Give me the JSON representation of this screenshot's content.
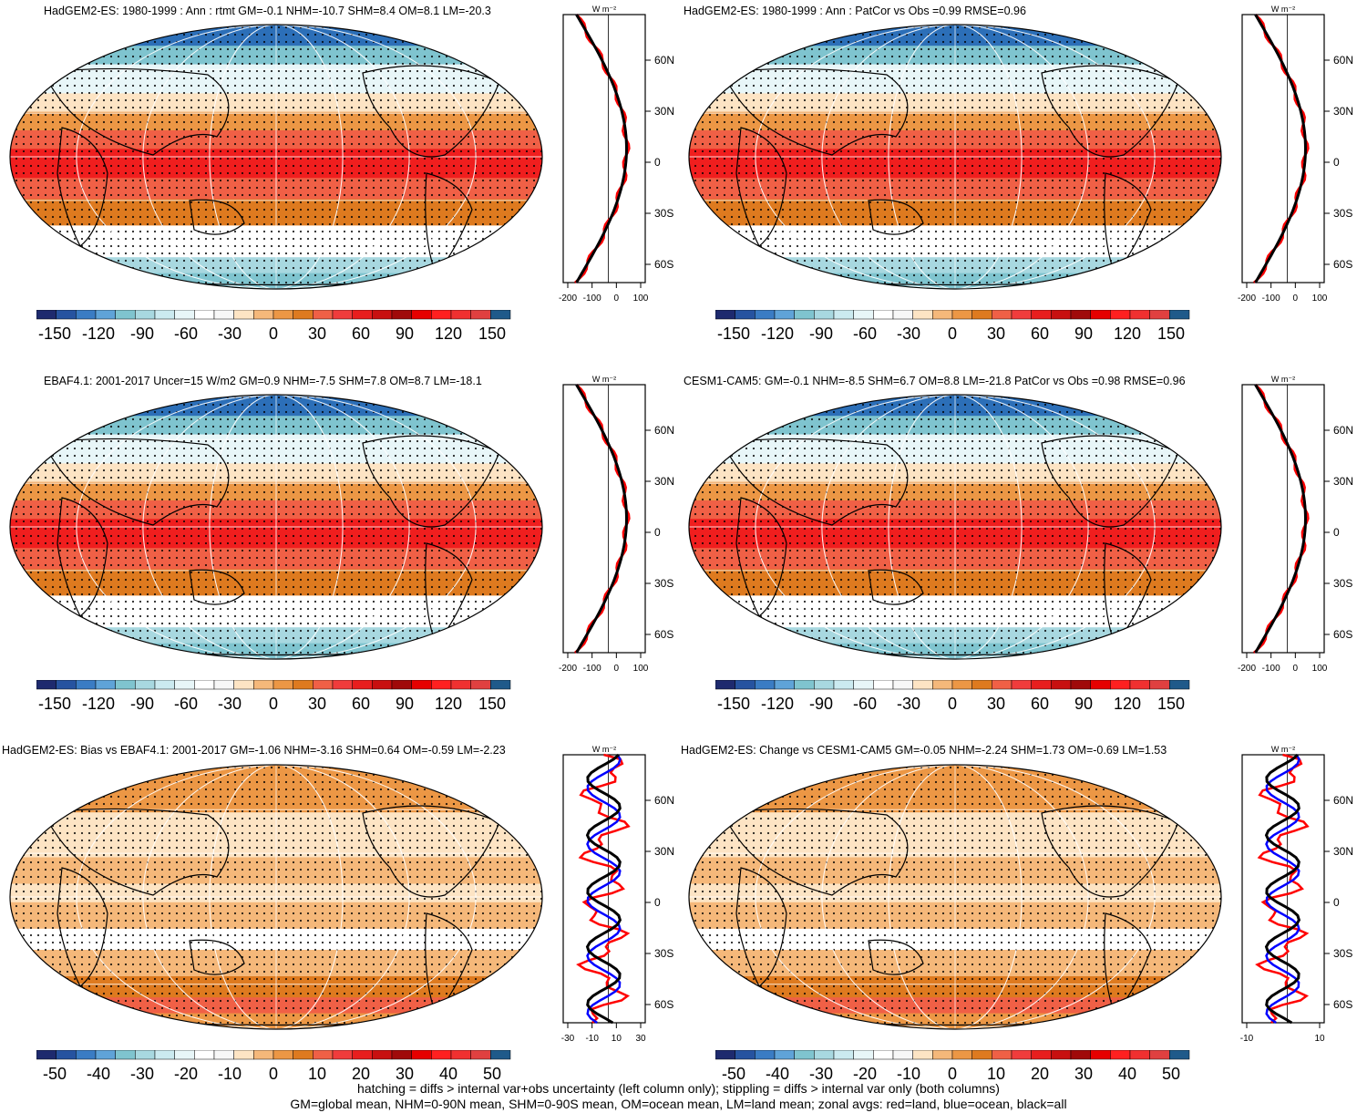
{
  "panels": [
    {
      "title": "HadGEM2-ES: 1980-1999 : Ann : rtmt GM=-0.1 NHM=-10.7 SHM=8.4 OM=8.1 LM=-20.3",
      "scheme": "mean",
      "zonal_ticks": [
        "-200",
        "-100",
        "0",
        "100"
      ],
      "zonal_unit": "W m⁻²"
    },
    {
      "title": "HadGEM2-ES: 1980-1999 : Ann : PatCor vs Obs =0.99 RMSE=0.96",
      "scheme": "mean",
      "zonal_ticks": [
        "-200",
        "-100",
        "0",
        "100"
      ],
      "zonal_unit": "W m⁻²"
    },
    {
      "title": "EBAF4.1: 2001-2017 Uncer=15 W/m2 GM=0.9 NHM=-7.5 SHM=7.8 OM=8.7 LM=-18.1",
      "scheme": "mean",
      "zonal_ticks": [
        "-200",
        "-100",
        "0",
        "100"
      ],
      "zonal_unit": "W m⁻²"
    },
    {
      "title": "CESM1-CAM5: GM=-0.1 NHM=-8.5 SHM=6.7 OM=8.8 LM=-21.8 PatCor vs Obs =0.98 RMSE=0.96",
      "scheme": "mean",
      "zonal_ticks": [
        "-200",
        "-100",
        "0",
        "100"
      ],
      "zonal_unit": "W m⁻²"
    },
    {
      "title": "HadGEM2-ES: Bias vs EBAF4.1: 2001-2017 GM=-1.06 NHM=-3.16 SHM=0.64 OM=-0.59 LM=-2.23",
      "scheme": "diff",
      "zonal_ticks": [
        "-30",
        "-10",
        "10",
        "30"
      ],
      "zonal_unit": "W m⁻²"
    },
    {
      "title": "HadGEM2-ES: Change vs CESM1-CAM5 GM=-0.05 NHM=-2.24 SHM=1.73 OM=-0.69 LM=1.53",
      "scheme": "diff",
      "zonal_ticks": [
        "-10",
        "10"
      ],
      "zonal_unit": "W m⁻²"
    }
  ],
  "latitude_labels": [
    "60N",
    "30N",
    "0",
    "30S",
    "60S"
  ],
  "colorbar_mean": [
    "-150",
    "-120",
    "-90",
    "-60",
    "-30",
    "0",
    "30",
    "60",
    "90",
    "120",
    "150"
  ],
  "colorbar_diff": [
    "-50",
    "-40",
    "-30",
    "-20",
    "-10",
    "0",
    "10",
    "20",
    "30",
    "40",
    "50"
  ],
  "colors": {
    "palette": [
      "#1e2a6e",
      "#2653a0",
      "#3a7cc4",
      "#5fa3d8",
      "#7fc4cf",
      "#a8d8e0",
      "#cbeaf0",
      "#e8f6f8",
      "#ffffff",
      "#f7f7f7",
      "#fde4c4",
      "#f5b87a",
      "#ec9745",
      "#de7a1f",
      "#f06046",
      "#f03c3c",
      "#e81e1e",
      "#c81010",
      "#a00a0a",
      "#e60000",
      "#ff2020",
      "#f03030",
      "#e04040",
      "#1f5a8a"
    ],
    "land_line": "#7a4a1e",
    "zonal_land": "#ff0000",
    "zonal_ocean": "#0000ff",
    "zonal_all": "#000000"
  },
  "footnote": {
    "line1": "hatching = diffs > internal var+obs uncertainty (left column only); stippling = diffs > internal var only (both columns)",
    "line2": "GM=global mean, NHM=0-90N mean, SHM=0-90S mean, OM=ocean mean, LM=land mean; zonal avgs: red=land, blue=ocean, black=all"
  },
  "chart_data": [
    {
      "type": "heatmap",
      "title": "HadGEM2-ES: 1980-1999 : Ann : rtmt GM=-0.1 NHM=-10.7 SHM=8.4 OM=8.1 LM=-20.3",
      "colorbar_range": [
        -150,
        150
      ],
      "zonal_mean": {
        "lat": [
          80,
          60,
          30,
          15,
          0,
          -15,
          -30,
          -60,
          -80
        ],
        "all": [
          -130,
          -90,
          -10,
          40,
          60,
          40,
          -10,
          -80,
          -120
        ]
      }
    },
    {
      "type": "heatmap",
      "title": "HadGEM2-ES: 1980-1999 : Ann : PatCor vs Obs =0.99 RMSE=0.96",
      "colorbar_range": [
        -150,
        150
      ]
    },
    {
      "type": "heatmap",
      "title": "EBAF4.1: 2001-2017 Uncer=15 W/m2 GM=0.9 NHM=-7.5 SHM=7.8 OM=8.7 LM=-18.1",
      "colorbar_range": [
        -150,
        150
      ]
    },
    {
      "type": "heatmap",
      "title": "CESM1-CAM5: GM=-0.1 NHM=-8.5 SHM=6.7 OM=8.8 LM=-21.8 PatCor vs Obs =0.98 RMSE=0.96",
      "colorbar_range": [
        -150,
        150
      ]
    },
    {
      "type": "heatmap",
      "title": "HadGEM2-ES: Bias vs EBAF4.1: 2001-2017 GM=-1.06 NHM=-3.16 SHM=0.64 OM=-0.59 LM=-2.23",
      "colorbar_range": [
        -50,
        50
      ]
    },
    {
      "type": "heatmap",
      "title": "HadGEM2-ES: Change vs CESM1-CAM5 GM=-0.05 NHM=-2.24 SHM=1.73 OM=-0.69 LM=1.53",
      "colorbar_range": [
        -50,
        50
      ]
    }
  ]
}
